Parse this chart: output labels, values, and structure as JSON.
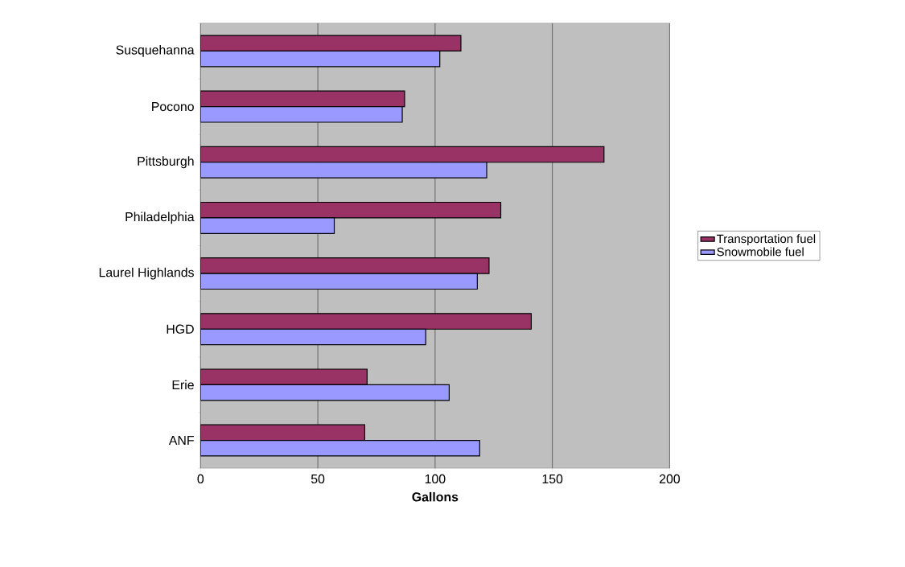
{
  "chart_data": {
    "type": "bar",
    "orientation": "horizontal",
    "xlabel": "Gallons",
    "categories": [
      "Susquehanna",
      "Pocono",
      "Pittsburgh",
      "Philadelphia",
      "Laurel Highlands",
      "HGD",
      "Erie",
      "ANF"
    ],
    "series": [
      {
        "name": "Transportation fuel",
        "color": "#993366",
        "values": [
          111,
          87,
          172,
          128,
          123,
          141,
          71,
          70
        ]
      },
      {
        "name": "Snowmobile fuel",
        "color": "#9999ff",
        "values": [
          102,
          86,
          122,
          57,
          118,
          96,
          106,
          119
        ]
      }
    ],
    "xlim": [
      0,
      200
    ],
    "xticks": [
      0,
      50,
      100,
      150,
      200
    ],
    "grid": "x",
    "legend": "right"
  }
}
